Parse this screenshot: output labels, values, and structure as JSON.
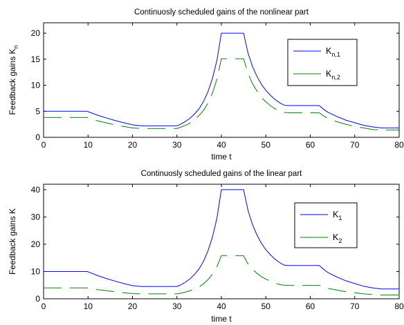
{
  "chart_data": [
    {
      "type": "line",
      "title": "Continuosly scheduled gains of the nonlinear part",
      "xlabel": "time t",
      "ylabel": {
        "main": "Feedback gains K",
        "sub": "n"
      },
      "xlim": [
        0,
        80
      ],
      "ylim": [
        0,
        22
      ],
      "xticks": [
        0,
        10,
        20,
        30,
        40,
        50,
        60,
        70,
        80
      ],
      "yticks": [
        0,
        5,
        10,
        15,
        20
      ],
      "grid": false,
      "legend_position": "top-right",
      "series": [
        {
          "legend_main": "K",
          "legend_sub": "n,1",
          "color": "#0000ff",
          "dash": "solid",
          "x": [
            0,
            9.8,
            12,
            14,
            16,
            18,
            20,
            22,
            24,
            26,
            28,
            30,
            31,
            32,
            33,
            34,
            35,
            36,
            37,
            38,
            39,
            40,
            45,
            46,
            47,
            48,
            49,
            50,
            51,
            52,
            53,
            54,
            55,
            62,
            63,
            64,
            66,
            68,
            70,
            72,
            74,
            76,
            80
          ],
          "y": [
            5.0,
            5.0,
            4.3,
            3.75,
            3.25,
            2.8,
            2.4,
            2.2,
            2.2,
            2.2,
            2.2,
            2.2,
            2.6,
            3.1,
            3.7,
            4.5,
            5.5,
            6.9,
            8.8,
            11.3,
            14.8,
            20.0,
            20.0,
            16.2,
            13.6,
            11.7,
            10.2,
            9.0,
            8.1,
            7.3,
            6.7,
            6.2,
            6.1,
            6.1,
            5.4,
            4.8,
            4.0,
            3.3,
            2.8,
            2.3,
            2.0,
            1.8,
            1.8
          ]
        },
        {
          "legend_main": "K",
          "legend_sub": "n,2",
          "color": "#008000",
          "dash": "long",
          "x": [
            0,
            9.8,
            12,
            14,
            16,
            18,
            20,
            22,
            24,
            26,
            28,
            30,
            31,
            32,
            33,
            34,
            35,
            36,
            37,
            38,
            39,
            40,
            45,
            46,
            47,
            48,
            49,
            50,
            51,
            52,
            53,
            54,
            55,
            62,
            63,
            64,
            66,
            68,
            70,
            72,
            74,
            76,
            80
          ],
          "y": [
            3.8,
            3.8,
            3.2,
            2.8,
            2.4,
            2.1,
            1.8,
            1.7,
            1.7,
            1.7,
            1.7,
            1.7,
            2.0,
            2.3,
            2.8,
            3.4,
            4.2,
            5.2,
            6.6,
            8.5,
            11.2,
            15.1,
            15.1,
            12.3,
            10.3,
            8.9,
            7.7,
            6.8,
            6.1,
            5.5,
            5.1,
            4.8,
            4.7,
            4.7,
            4.1,
            3.6,
            3.0,
            2.5,
            2.1,
            1.8,
            1.5,
            1.4,
            1.4
          ]
        }
      ]
    },
    {
      "type": "line",
      "title": "Continuosly scheduled gains of the linear part",
      "xlabel": "time t",
      "ylabel": {
        "main": "Feedback gains K",
        "sub": ""
      },
      "xlim": [
        0,
        80
      ],
      "ylim": [
        0,
        42
      ],
      "xticks": [
        0,
        10,
        20,
        30,
        40,
        50,
        60,
        70,
        80
      ],
      "yticks": [
        0,
        10,
        20,
        30,
        40
      ],
      "grid": false,
      "legend_position": "top-right",
      "series": [
        {
          "legend_main": "K",
          "legend_sub": "1",
          "color": "#0000ff",
          "dash": "solid",
          "x": [
            0,
            9.8,
            12,
            14,
            16,
            18,
            20,
            22,
            24,
            26,
            28,
            30,
            31,
            32,
            33,
            34,
            35,
            36,
            37,
            38,
            39,
            40,
            45,
            46,
            47,
            48,
            49,
            50,
            51,
            52,
            53,
            54,
            55,
            62,
            63,
            64,
            66,
            68,
            70,
            72,
            74,
            76,
            80
          ],
          "y": [
            10.0,
            10.0,
            8.6,
            7.5,
            6.5,
            5.6,
            4.8,
            4.5,
            4.5,
            4.5,
            4.5,
            4.5,
            5.2,
            6.2,
            7.4,
            9.0,
            11.0,
            13.8,
            17.6,
            22.6,
            29.6,
            40.0,
            40.0,
            32.4,
            27.2,
            23.4,
            20.4,
            18.0,
            16.2,
            14.6,
            13.4,
            12.4,
            12.2,
            12.2,
            10.8,
            9.6,
            8.0,
            6.6,
            5.6,
            4.6,
            4.0,
            3.6,
            3.6
          ]
        },
        {
          "legend_main": "K",
          "legend_sub": "2",
          "color": "#008000",
          "dash": "long",
          "x": [
            0,
            9.8,
            12,
            14,
            16,
            18,
            20,
            22,
            24,
            26,
            28,
            30,
            31,
            32,
            33,
            34,
            35,
            36,
            37,
            38,
            39,
            40,
            45,
            46,
            47,
            48,
            49,
            50,
            51,
            52,
            53,
            54,
            55,
            62,
            63,
            64,
            66,
            68,
            70,
            72,
            74,
            76,
            80
          ],
          "y": [
            4.0,
            4.0,
            3.4,
            3.0,
            2.6,
            2.2,
            1.9,
            1.8,
            1.8,
            1.8,
            1.8,
            1.8,
            2.1,
            2.5,
            3.0,
            3.6,
            4.4,
            5.5,
            7.0,
            9.0,
            11.8,
            15.8,
            15.8,
            12.8,
            10.8,
            9.3,
            8.1,
            7.2,
            6.5,
            5.8,
            5.3,
            5.0,
            4.9,
            4.9,
            4.3,
            3.8,
            3.2,
            2.6,
            2.2,
            1.8,
            1.6,
            1.4,
            1.4
          ]
        }
      ]
    }
  ]
}
